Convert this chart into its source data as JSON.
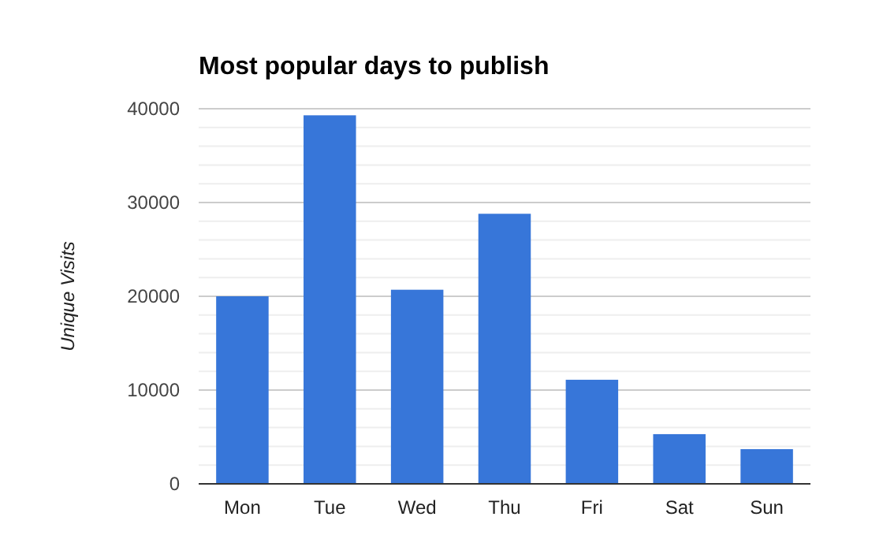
{
  "chart_data": {
    "type": "bar",
    "title": "Most popular days to publish",
    "ylabel": "Unique Visits",
    "categories": [
      "Mon",
      "Tue",
      "Wed",
      "Thu",
      "Fri",
      "Sat",
      "Sun"
    ],
    "values": [
      20000,
      39300,
      20700,
      28800,
      11100,
      5300,
      3700
    ],
    "color": "#3776d9",
    "ylim": [
      0,
      40000
    ],
    "yticks": [
      0,
      {
        "value": 2000,
        "label": null
      },
      {
        "value": 4000,
        "label": null
      },
      {
        "value": 6000,
        "label": null
      },
      {
        "value": 8000,
        "label": null
      },
      10000,
      {
        "value": 12000,
        "label": null
      },
      {
        "value": 14000,
        "label": null
      },
      {
        "value": 16000,
        "label": null
      },
      {
        "value": 18000,
        "label": null
      },
      20000,
      {
        "value": 22000,
        "label": null
      },
      {
        "value": 24000,
        "label": null
      },
      {
        "value": 26000,
        "label": null
      },
      {
        "value": 28000,
        "label": null
      },
      30000,
      {
        "value": 32000,
        "label": null
      },
      {
        "value": 34000,
        "label": null
      },
      {
        "value": 36000,
        "label": null
      },
      {
        "value": 38000,
        "label": null
      },
      40000
    ],
    "grid": "y"
  }
}
